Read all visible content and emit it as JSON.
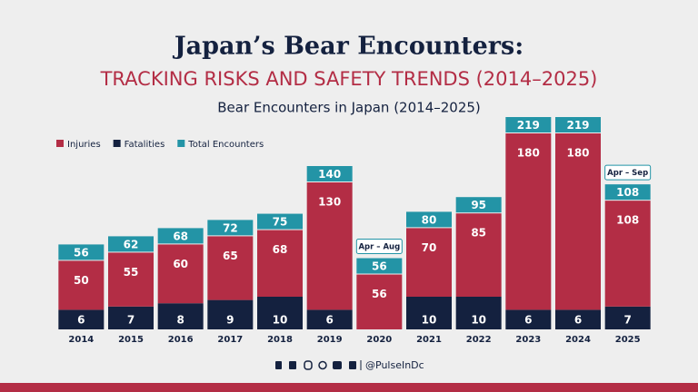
{
  "chart_data": {
    "type": "stacked-bar",
    "title": "Japan’s Bear Encounters:",
    "subtitle": "TRACKING RISKS AND SAFETY TRENDS (2014–2025)",
    "chart_title": "Bear Encounters in Japan (2014–2025)",
    "categories": [
      "2014",
      "2015",
      "2016",
      "2017",
      "2018",
      "2019",
      "2020",
      "2021",
      "2022",
      "2023",
      "2024",
      "2025"
    ],
    "series": [
      {
        "name": "Injuries",
        "color": "#b32d45",
        "values": [
          50,
          55,
          60,
          65,
          68,
          130,
          56,
          70,
          85,
          180,
          180,
          108
        ]
      },
      {
        "name": "Fatalities",
        "color": "#14213f",
        "values": [
          6,
          7,
          8,
          9,
          10,
          6,
          0,
          10,
          10,
          6,
          6,
          7
        ]
      },
      {
        "name": "Total Encounters",
        "color": "#2394a6",
        "values": [
          56,
          62,
          68,
          72,
          75,
          140,
          56,
          80,
          95,
          219,
          219,
          108
        ]
      }
    ],
    "annotations": [
      {
        "category": "2020",
        "text": "Apr – Aug"
      },
      {
        "category": "2025",
        "text": "Apr – Sep"
      }
    ],
    "legend": "top-left",
    "footer": "@PulseInDc"
  }
}
